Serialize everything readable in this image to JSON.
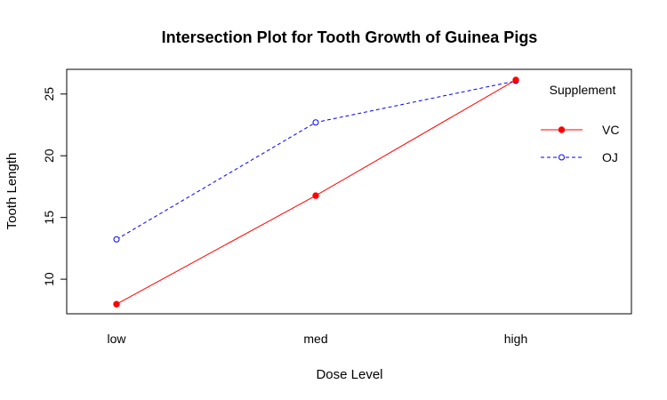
{
  "chart_data": {
    "type": "line",
    "title": "Intersection Plot for Tooth Growth of Guinea Pigs",
    "xlabel": "Dose Level",
    "ylabel": "Tooth Length",
    "categories": [
      "low",
      "med",
      "high"
    ],
    "y_ticks": [
      10,
      15,
      20,
      25
    ],
    "ylim": [
      7.2,
      27.0
    ],
    "grid": false,
    "legend": {
      "title": "Supplement",
      "placement": "top-right"
    },
    "series": [
      {
        "name": "VC",
        "values": [
          7.98,
          16.77,
          26.14
        ],
        "color": "#ff0000",
        "line_style": "solid",
        "marker": "filled-circle"
      },
      {
        "name": "OJ",
        "values": [
          13.23,
          22.7,
          26.06
        ],
        "color": "#0000ff",
        "line_style": "dashed",
        "marker": "open-circle"
      }
    ]
  }
}
